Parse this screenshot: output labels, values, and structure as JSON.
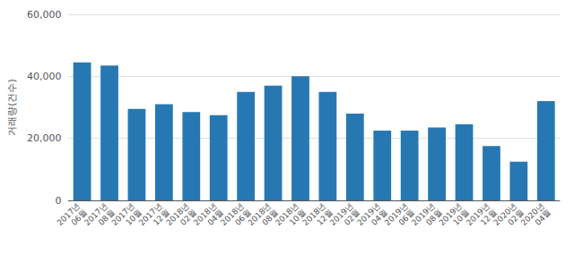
{
  "chart_data": {
    "type": "bar",
    "ylabel": "거래량(건수)",
    "categories": [
      "2017년\n06월",
      "2017년\n08월",
      "2017년\n10월",
      "2017년\n12월",
      "2018년\n02월",
      "2018년\n04월",
      "2018년\n06월",
      "2018년\n08월",
      "2018년\n10월",
      "2018년\n12월",
      "2019년\n02월",
      "2019년\n04월",
      "2019년\n06월",
      "2019년\n08월",
      "2019년\n10월",
      "2019년\n12월",
      "2020년\n02월",
      "2020년\n04월"
    ],
    "values": [
      44500,
      43500,
      29500,
      31000,
      28500,
      27500,
      35000,
      37000,
      40000,
      35000,
      28000,
      22500,
      22500,
      23500,
      24500,
      17500,
      12500,
      32000
    ],
    "color": "#2778b2",
    "ylim": [
      0,
      60000
    ],
    "yticks": [
      0,
      {
        "value": 20000,
        "label": "20,000"
      },
      {
        "value": 40000,
        "label": "40,000"
      },
      {
        "value": 60000,
        "label": "60,000"
      }
    ],
    "grid": true
  }
}
